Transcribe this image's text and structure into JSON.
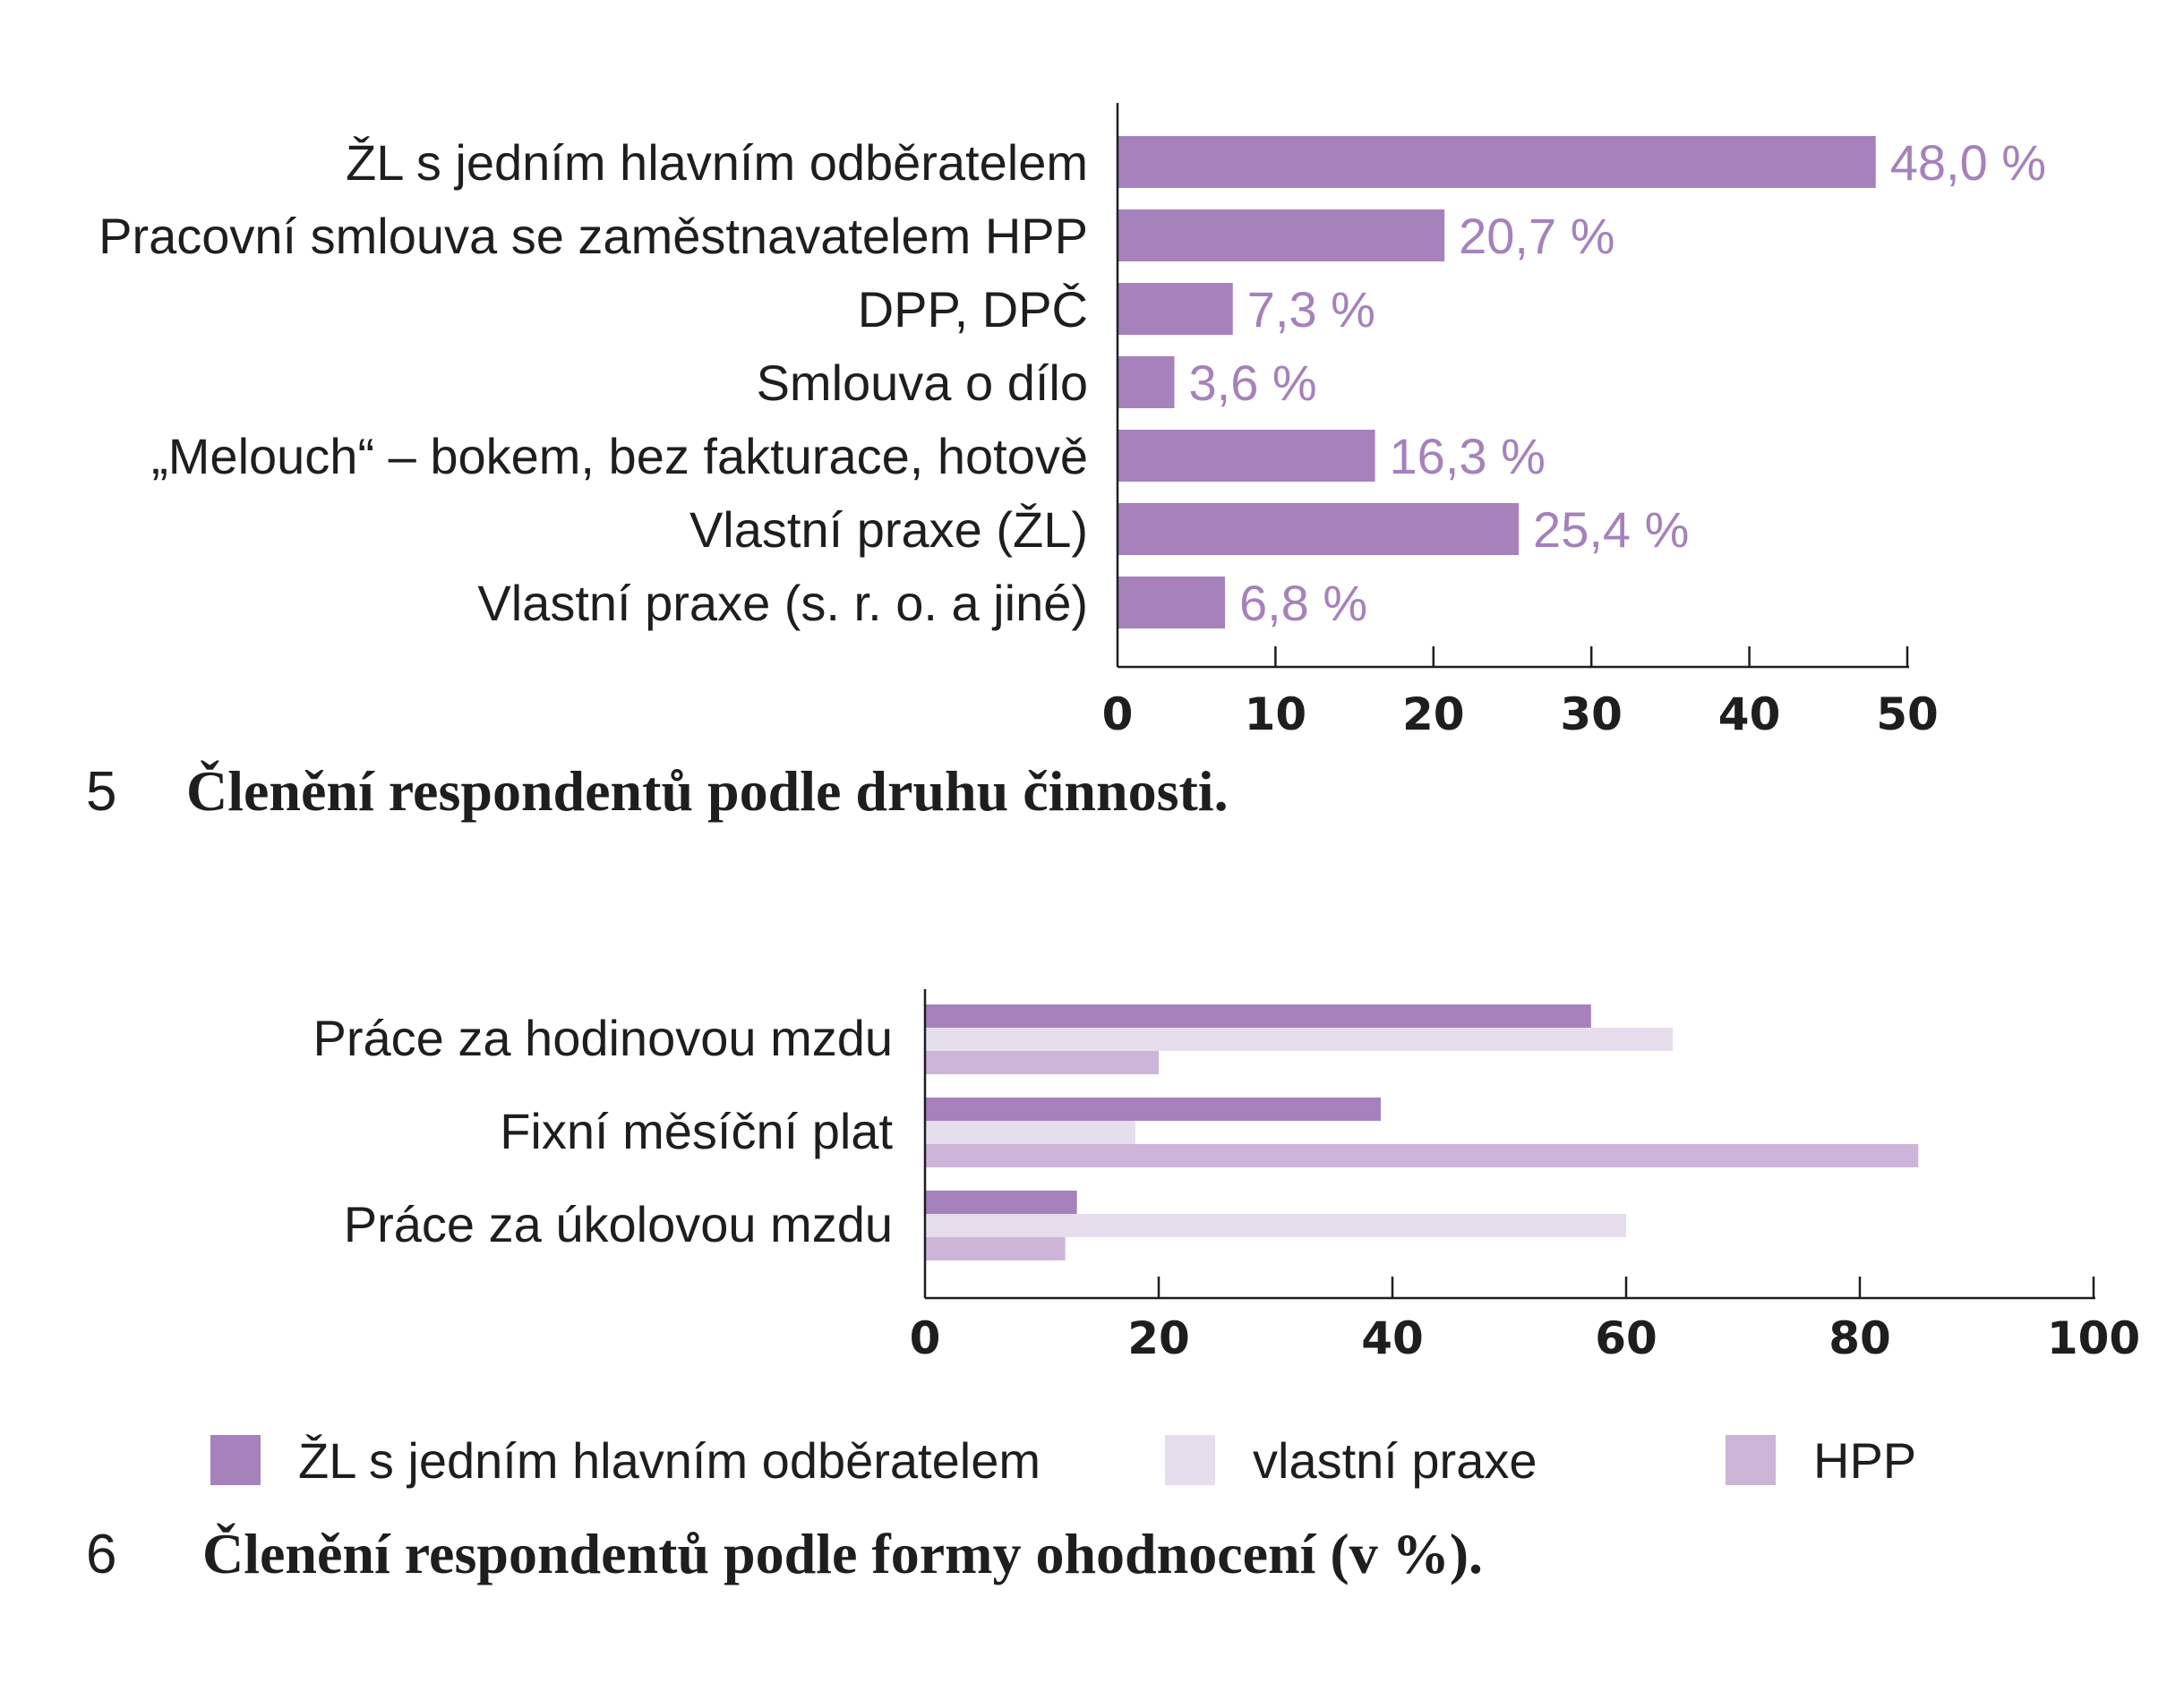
{
  "chart_data": [
    {
      "type": "bar",
      "orientation": "horizontal",
      "caption_number": "5",
      "caption": "Členění respondentů podle druhu činnosti.",
      "categories": [
        "ŽL s jedním hlavním odběratelem",
        "Pracovní smlouva se zaměstnavatelem HPP",
        "DPP, DPČ",
        "Smlouva o dílo",
        "„Melouch“ – bokem, bez fakturace, hotově",
        "Vlastní praxe (ŽL)",
        "Vlastní praxe (s. r. o. a jiné)"
      ],
      "values": [
        48.0,
        20.7,
        7.3,
        3.6,
        16.3,
        25.4,
        6.8
      ],
      "value_labels": [
        "48,0 %",
        "20,7 %",
        "7,3 %",
        "3,6 %",
        "16,3 %",
        "25,4 %",
        "6,8 %"
      ],
      "xlim": [
        0,
        50
      ],
      "xticks": [
        "0",
        "10",
        "20",
        "30",
        "40",
        "50"
      ],
      "color": "#a681bc",
      "grid": false
    },
    {
      "type": "bar",
      "orientation": "horizontal",
      "caption_number": "6",
      "caption": "Členění respondentů podle formy ohodnocení (v %).",
      "categories": [
        "Práce za hodinovou mzdu",
        "Fixní měsíční plat",
        "Práce za úkolovou mzdu"
      ],
      "series": [
        {
          "name": "ŽL s jedním hlavním odběratelem",
          "values": [
            57,
            39,
            13
          ],
          "color": "#a681bc"
        },
        {
          "name": "vlastní praxe",
          "values": [
            64,
            18,
            60
          ],
          "color": "#e6dded"
        },
        {
          "name": "HPP",
          "values": [
            20,
            85,
            12
          ],
          "color": "#cdb5da"
        }
      ],
      "xlim": [
        0,
        100
      ],
      "xticks": [
        "0",
        "20",
        "40",
        "60",
        "80",
        "100"
      ],
      "legend_position": "bottom",
      "grid": false
    }
  ]
}
